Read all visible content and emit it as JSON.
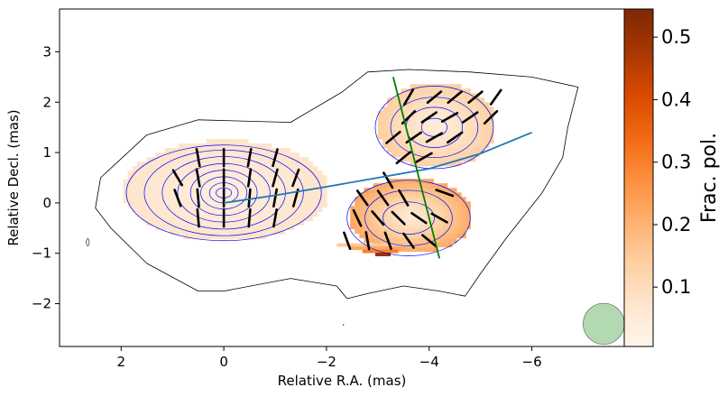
{
  "chart_data": {
    "type": "polarization-map",
    "xlabel": "Relative R.A. (mas)",
    "ylabel": "Relative Decl. (mas)",
    "xlim": [
      3.2,
      -7.8
    ],
    "ylim": [
      -2.85,
      3.85
    ],
    "x_ticks": [
      {
        "value": 2,
        "label": "2"
      },
      {
        "value": 0,
        "label": "0"
      },
      {
        "value": -2,
        "label": "−2"
      },
      {
        "value": -4,
        "label": "−4"
      },
      {
        "value": -6,
        "label": "−6"
      }
    ],
    "y_ticks": [
      {
        "value": 3,
        "label": "3"
      },
      {
        "value": 2,
        "label": "2"
      },
      {
        "value": 1,
        "label": "1"
      },
      {
        "value": 0,
        "label": "0"
      },
      {
        "value": -1,
        "label": "−1"
      },
      {
        "value": -2,
        "label": "−2"
      }
    ],
    "colorbar": {
      "label": "Frac. pol.",
      "range": [
        0.005,
        0.545
      ],
      "colormap": "Oranges",
      "ticks": [
        {
          "value": 0.1,
          "label": "0.1"
        },
        {
          "value": 0.2,
          "label": "0.2"
        },
        {
          "value": 0.3,
          "label": "0.3"
        },
        {
          "value": 0.4,
          "label": "0.4"
        },
        {
          "value": 0.5,
          "label": "0.5"
        }
      ]
    },
    "regions": [
      {
        "name": "core",
        "cx": 0.0,
        "cy": 0.2,
        "rx": 2.0,
        "ry": 1.0,
        "pol_center": 0.03,
        "pol_edge": 0.08
      },
      {
        "name": "knot-upper",
        "cx": -4.1,
        "cy": 1.5,
        "rx": 1.15,
        "ry": 0.85,
        "pol_center": 0.04,
        "pol_edge": 0.14
      },
      {
        "name": "knot-lower",
        "cx": -3.6,
        "cy": -0.3,
        "rx": 1.2,
        "ry": 0.75,
        "pol_center": 0.05,
        "pol_edge": 0.22
      }
    ],
    "high_pol_patch": {
      "x_range": [
        -2.2,
        -3.7
      ],
      "y_range": [
        -0.8,
        -1.05
      ],
      "values": [
        0.15,
        0.22,
        0.3,
        0.5
      ]
    },
    "outer_contour": [
      [
        2.4,
        0.5
      ],
      [
        1.5,
        1.35
      ],
      [
        0.5,
        1.65
      ],
      [
        -1.3,
        1.6
      ],
      [
        -2.3,
        2.2
      ],
      [
        -2.8,
        2.6
      ],
      [
        -3.6,
        2.65
      ],
      [
        -4.8,
        2.6
      ],
      [
        -6.0,
        2.5
      ],
      [
        -6.9,
        2.3
      ],
      [
        -6.7,
        1.5
      ],
      [
        -6.6,
        0.9
      ],
      [
        -6.2,
        0.2
      ],
      [
        -5.5,
        -0.7
      ],
      [
        -5.0,
        -1.4
      ],
      [
        -4.7,
        -1.85
      ],
      [
        -4.2,
        -1.75
      ],
      [
        -3.5,
        -1.65
      ],
      [
        -2.8,
        -1.8
      ],
      [
        -2.4,
        -1.9
      ],
      [
        -2.2,
        -1.65
      ],
      [
        -1.3,
        -1.5
      ],
      [
        0.0,
        -1.75
      ],
      [
        0.5,
        -1.75
      ],
      [
        1.5,
        -1.2
      ],
      [
        2.2,
        -0.5
      ],
      [
        2.5,
        -0.1
      ]
    ],
    "intensity_contours": [
      {
        "name": "core",
        "cx": 0.0,
        "cy": 0.2,
        "rx": [
          1.9,
          1.55,
          1.2,
          0.9,
          0.65,
          0.45,
          0.28,
          0.15
        ],
        "ry": [
          0.95,
          0.85,
          0.72,
          0.58,
          0.45,
          0.32,
          0.2,
          0.1
        ]
      },
      {
        "name": "knot-upper",
        "cx": -4.1,
        "cy": 1.5,
        "rx": [
          1.15,
          0.85,
          0.55,
          0.25
        ],
        "ry": [
          0.82,
          0.6,
          0.4,
          0.18
        ]
      },
      {
        "name": "knot-lower",
        "cx": -3.6,
        "cy": -0.3,
        "rx": [
          1.2,
          0.85,
          0.5
        ],
        "ry": [
          0.75,
          0.55,
          0.32
        ]
      }
    ],
    "jet_ridge_line": [
      [
        0.0,
        0.0
      ],
      [
        -1.0,
        0.15
      ],
      [
        -2.0,
        0.32
      ],
      [
        -3.0,
        0.5
      ],
      [
        -4.0,
        0.68
      ],
      [
        -5.0,
        0.98
      ],
      [
        -6.0,
        1.4
      ]
    ],
    "perpendicular_cut": [
      [
        -3.3,
        2.5
      ],
      [
        -4.2,
        -1.1
      ]
    ],
    "evpa_vectors": [
      {
        "x": 0.9,
        "y": 0.5,
        "angle": 120
      },
      {
        "x": 0.9,
        "y": 0.1,
        "angle": 110
      },
      {
        "x": 0.5,
        "y": 0.9,
        "angle": 100
      },
      {
        "x": 0.5,
        "y": 0.5,
        "angle": 100
      },
      {
        "x": 0.5,
        "y": 0.1,
        "angle": 95
      },
      {
        "x": 0.5,
        "y": -0.3,
        "angle": 95
      },
      {
        "x": 0.0,
        "y": 0.9,
        "angle": 90
      },
      {
        "x": 0.0,
        "y": 0.5,
        "angle": 90
      },
      {
        "x": 0.0,
        "y": 0.1,
        "angle": 90
      },
      {
        "x": 0.0,
        "y": -0.3,
        "angle": 90
      },
      {
        "x": -0.5,
        "y": 0.9,
        "angle": 80
      },
      {
        "x": -0.5,
        "y": 0.5,
        "angle": 82
      },
      {
        "x": -0.5,
        "y": 0.1,
        "angle": 85
      },
      {
        "x": -0.5,
        "y": -0.3,
        "angle": 85
      },
      {
        "x": -1.0,
        "y": 0.9,
        "angle": 75
      },
      {
        "x": -1.0,
        "y": 0.5,
        "angle": 75
      },
      {
        "x": -1.0,
        "y": 0.1,
        "angle": 80
      },
      {
        "x": -1.0,
        "y": -0.3,
        "angle": 80
      },
      {
        "x": -1.4,
        "y": 0.5,
        "angle": 70
      },
      {
        "x": -1.4,
        "y": 0.1,
        "angle": 75
      },
      {
        "x": -3.6,
        "y": 2.1,
        "angle": 60
      },
      {
        "x": -4.1,
        "y": 2.1,
        "angle": 40
      },
      {
        "x": -4.5,
        "y": 2.1,
        "angle": 40
      },
      {
        "x": -4.9,
        "y": 2.1,
        "angle": 40
      },
      {
        "x": -5.3,
        "y": 2.1,
        "angle": 55
      },
      {
        "x": -3.6,
        "y": 1.7,
        "angle": 45
      },
      {
        "x": -4.0,
        "y": 1.7,
        "angle": 35
      },
      {
        "x": -4.4,
        "y": 1.7,
        "angle": 30
      },
      {
        "x": -4.8,
        "y": 1.7,
        "angle": 35
      },
      {
        "x": -5.2,
        "y": 1.7,
        "angle": 45
      },
      {
        "x": -3.3,
        "y": 1.3,
        "angle": 40
      },
      {
        "x": -3.7,
        "y": 1.3,
        "angle": 35
      },
      {
        "x": -4.1,
        "y": 1.3,
        "angle": 30
      },
      {
        "x": -4.5,
        "y": 1.3,
        "angle": 35
      },
      {
        "x": -3.5,
        "y": 0.9,
        "angle": 40
      },
      {
        "x": -3.9,
        "y": 0.9,
        "angle": 30
      },
      {
        "x": -2.7,
        "y": 0.1,
        "angle": 125
      },
      {
        "x": -3.1,
        "y": 0.1,
        "angle": 125
      },
      {
        "x": -3.5,
        "y": 0.1,
        "angle": 120
      },
      {
        "x": -2.6,
        "y": -0.3,
        "angle": 115
      },
      {
        "x": -3.0,
        "y": -0.3,
        "angle": 130
      },
      {
        "x": -3.4,
        "y": -0.3,
        "angle": 135
      },
      {
        "x": -3.8,
        "y": -0.3,
        "angle": 145
      },
      {
        "x": -4.2,
        "y": -0.3,
        "angle": 150
      },
      {
        "x": -2.4,
        "y": -0.75,
        "angle": 110
      },
      {
        "x": -2.8,
        "y": -0.75,
        "angle": 100
      },
      {
        "x": -3.2,
        "y": -0.75,
        "angle": 110
      },
      {
        "x": -3.6,
        "y": -0.75,
        "angle": 125
      },
      {
        "x": -4.0,
        "y": -0.75,
        "angle": 140
      },
      {
        "x": -3.2,
        "y": 0.45,
        "angle": 120
      },
      {
        "x": -4.3,
        "y": 0.2,
        "angle": 160
      }
    ],
    "beam": {
      "x": -7.4,
      "y": -2.4,
      "diameter_mas": 0.8,
      "color": "#7fbf7f"
    },
    "small_features": [
      {
        "kind": "contour",
        "x": 2.65,
        "y": -0.78
      },
      {
        "kind": "dot",
        "x": -2.33,
        "y": -2.42
      }
    ],
    "colors": {
      "outer_contour": "#000000",
      "intensity_contours": "#0000ff",
      "evpa_vectors": "#000000",
      "ridge_line": "#1f77b4",
      "cut_line": "#008000"
    }
  }
}
